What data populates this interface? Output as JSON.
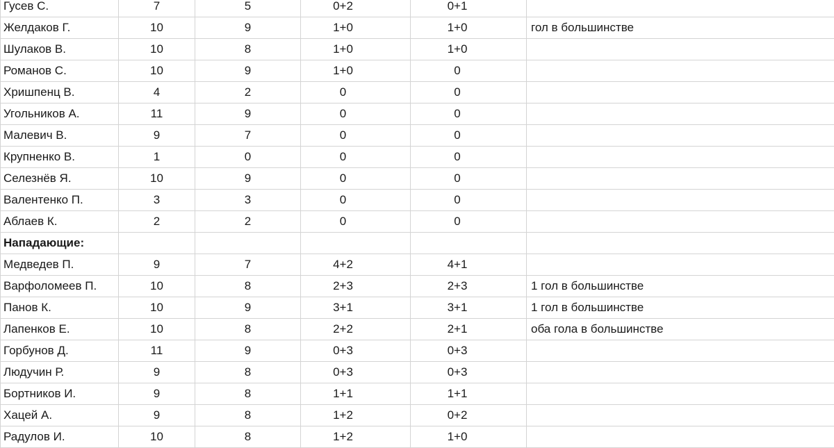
{
  "table": {
    "rows": [
      [
        "Гусев С.",
        "7",
        "5",
        "0+2",
        "0+1"
      ],
      [
        "Желдаков Г.",
        "10",
        "9",
        "1+0",
        "1+0",
        "гол в большинстве"
      ],
      [
        "Шулаков В.",
        "10",
        "8",
        "1+0",
        "1+0"
      ],
      [
        "Романов С.",
        "10",
        "9",
        "1+0",
        "0"
      ],
      [
        "Хришпенц В.",
        "4",
        "2",
        "0",
        "0"
      ],
      [
        "Угольников А.",
        "11",
        "9",
        "0",
        "0"
      ],
      [
        "Малевич В.",
        "9",
        "7",
        "0",
        "0"
      ],
      [
        "Крупненко В.",
        "1",
        "0",
        "0",
        "0"
      ],
      [
        "Селезнёв Я.",
        "10",
        "9",
        "0",
        "0"
      ],
      [
        "Валентенко П.",
        "3",
        "3",
        "0",
        "0"
      ],
      [
        "Аблаев К.",
        "2",
        "2",
        "0",
        "0"
      ],
      [
        "Нападающие:"
      ],
      [
        "Медведев П.",
        "9",
        "7",
        "4+2",
        "4+1"
      ],
      [
        "Варфоломеев П.",
        "10",
        "8",
        "2+3",
        "2+3",
        "1 гол в большинстве"
      ],
      [
        "Панов К.",
        "10",
        "9",
        "3+1",
        "3+1",
        "1 гол в большинстве"
      ],
      [
        "Лапенков Е.",
        "10",
        "8",
        "2+2",
        "2+1",
        "оба гола в большинстве"
      ],
      [
        "Горбунов Д.",
        "11",
        "9",
        "0+3",
        "0+3"
      ],
      [
        "Людучин Р.",
        "9",
        "8",
        "0+3",
        "0+3"
      ],
      [
        "Бортников И.",
        "9",
        "8",
        "1+1",
        "1+1"
      ],
      [
        "Хацей А.",
        "9",
        "8",
        "1+2",
        "0+2"
      ],
      [
        "Радулов И.",
        "10",
        "8",
        "1+2",
        "1+0"
      ]
    ]
  }
}
